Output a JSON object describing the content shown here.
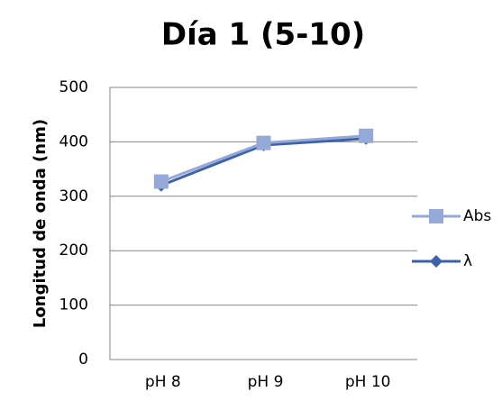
{
  "chart_data": {
    "type": "line",
    "title": "Día 1 (5-10)",
    "y_label": "Longitud de onda (nm)",
    "categories": [
      "pH 8",
      "pH 9",
      "pH 10"
    ],
    "series": [
      {
        "name": "Abs",
        "color": "#95a9d9",
        "marker": "square",
        "values": [
          327,
          398,
          411
        ]
      },
      {
        "name": "λ",
        "color": "#3e62a8",
        "marker": "diamond",
        "values": [
          320,
          394,
          406
        ]
      }
    ],
    "ylim": [
      0,
      500
    ],
    "yticks": [
      0,
      100,
      200,
      300,
      400,
      500
    ],
    "grid": true,
    "legend": "right"
  }
}
